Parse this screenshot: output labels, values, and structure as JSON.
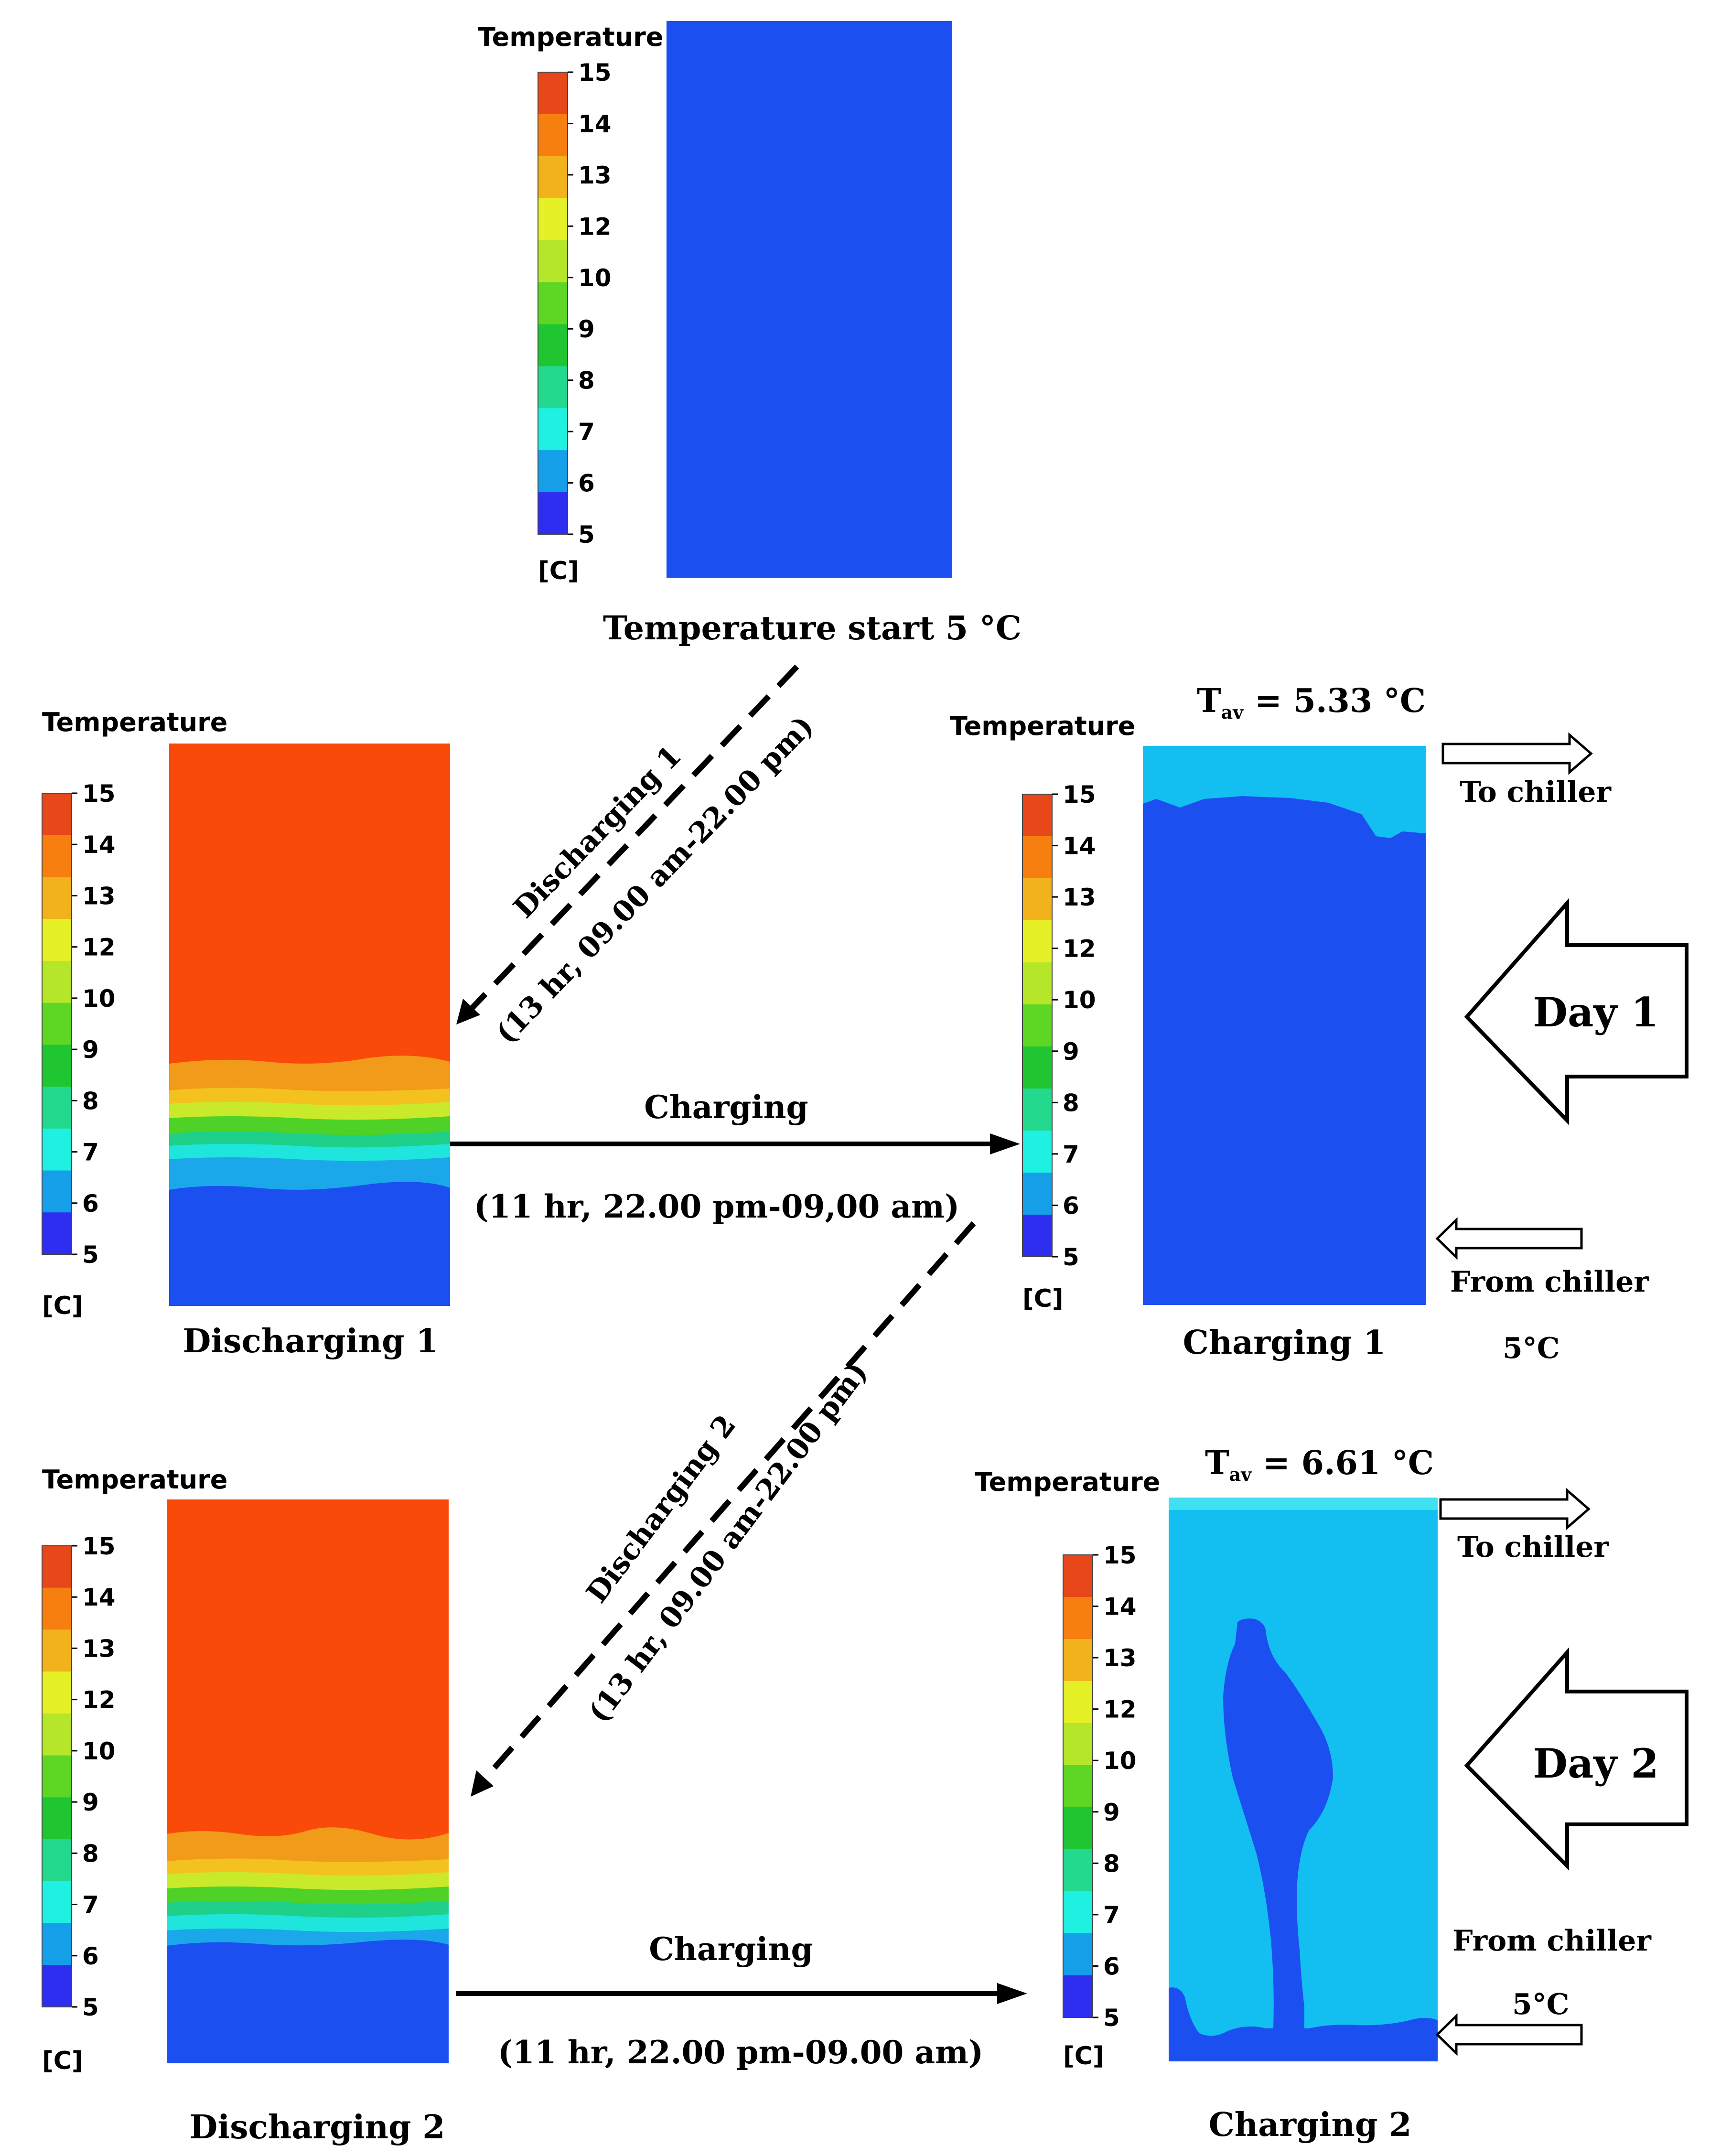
{
  "colorbar": {
    "title": "Temperature",
    "unit": "[C]",
    "ticks": [
      "15",
      "14",
      "13",
      "12",
      "10",
      "9",
      "8",
      "7",
      "6",
      "5"
    ],
    "colors": [
      "#e8471a",
      "#f77f10",
      "#f2b21c",
      "#e6f026",
      "#b6e62a",
      "#5ed624",
      "#1fc631",
      "#22d98e",
      "#1ef0e1",
      "#159fe9",
      "#2e2ef0"
    ]
  },
  "fluid_colors": {
    "cold": "#1c4ff0",
    "cool": "#12bff0",
    "hot": "#fa4a0a"
  },
  "panels": {
    "start": {
      "caption": "Temperature  start 5 °C"
    },
    "discharging1": {
      "caption": "Discharging  1"
    },
    "charging1": {
      "caption": "Charging  1",
      "tav_prefix": "T",
      "tav_sub": "av",
      "tav_value": " = 5.33 °C"
    },
    "discharging2": {
      "caption": "Discharging  2"
    },
    "charging2": {
      "caption": "Charging  2",
      "tav_prefix": "T",
      "tav_sub": "av",
      "tav_value": " = 6.61 °C"
    }
  },
  "flows": {
    "discharging1_line1": "Discharging 1",
    "discharging1_line2": "(13 hr, 09.00 am-22.00 pm)",
    "charging1_label": "Charging",
    "charging1_time": "(11 hr, 22.00 pm-09,00 am)",
    "discharging2_line1": "Discharging 2",
    "discharging2_line2": "(13 hr, 09.00 am-22.00 pm)",
    "charging2_label": "Charging",
    "charging2_time": "(11 hr, 22.00 pm-09.00 am)"
  },
  "ports": {
    "to_chiller_1": "To chiller",
    "from_chiller_1": "From chiller",
    "inlet_temp_1": "5°C",
    "to_chiller_2": "To chiller",
    "from_chiller_2": "From chiller",
    "inlet_temp_2": "5°C"
  },
  "days": {
    "day1": "Day  1",
    "day2": "Day  2"
  }
}
